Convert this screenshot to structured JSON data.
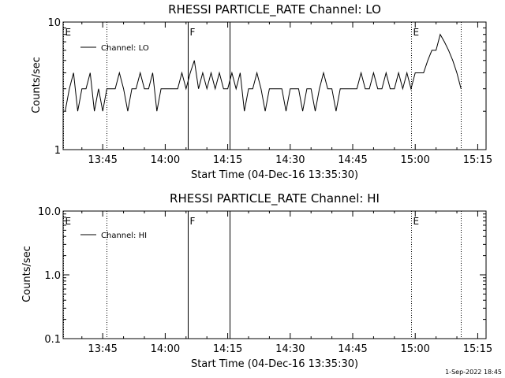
{
  "chart_data": [
    {
      "type": "line",
      "title": "RHESSI PARTICLE_RATE Channel: LO",
      "xlabel": "Start Time (04-Dec-16 13:35:30)",
      "ylabel": "Counts/sec",
      "yscale": "log",
      "ylim": [
        1,
        10
      ],
      "yticks": [
        "1",
        "10"
      ],
      "xlim": [
        "13:35:30",
        "15:17:00"
      ],
      "xticks": [
        "13:45",
        "14:00",
        "14:15",
        "14:30",
        "14:45",
        "15:00",
        "15:15"
      ],
      "legend": "Channel: LO",
      "legend_position": "top-left",
      "grid": false,
      "markers": [
        {
          "time": "13:35:30",
          "label": "E",
          "style": "dotted"
        },
        {
          "time": "13:46:00",
          "label": "",
          "style": "dotted"
        },
        {
          "time": "14:05:30",
          "label": "F",
          "style": "solid"
        },
        {
          "time": "14:15:30",
          "label": "",
          "style": "solid"
        },
        {
          "time": "14:59:00",
          "label": "E",
          "style": "dotted"
        },
        {
          "time": "15:11:00",
          "label": "",
          "style": "dotted"
        }
      ],
      "series": [
        {
          "name": "Channel: LO",
          "points": [
            [
              "13:36:00",
              2
            ],
            [
              "13:37:00",
              3
            ],
            [
              "13:38:00",
              4
            ],
            [
              "13:39:00",
              2
            ],
            [
              "13:40:00",
              3
            ],
            [
              "13:41:00",
              3
            ],
            [
              "13:42:00",
              4
            ],
            [
              "13:43:00",
              2
            ],
            [
              "13:44:00",
              3
            ],
            [
              "13:45:00",
              2
            ],
            [
              "13:46:00",
              3
            ],
            [
              "13:47:00",
              3
            ],
            [
              "13:48:00",
              3
            ],
            [
              "13:49:00",
              4
            ],
            [
              "13:50:00",
              3
            ],
            [
              "13:51:00",
              2
            ],
            [
              "13:52:00",
              3
            ],
            [
              "13:53:00",
              3
            ],
            [
              "13:54:00",
              4
            ],
            [
              "13:55:00",
              3
            ],
            [
              "13:56:00",
              3
            ],
            [
              "13:57:00",
              4
            ],
            [
              "13:58:00",
              2
            ],
            [
              "13:59:00",
              3
            ],
            [
              "14:00:00",
              3
            ],
            [
              "14:01:00",
              3
            ],
            [
              "14:02:00",
              3
            ],
            [
              "14:03:00",
              3
            ],
            [
              "14:04:00",
              4
            ],
            [
              "14:05:00",
              3
            ],
            [
              "14:06:00",
              4
            ],
            [
              "14:07:00",
              5
            ],
            [
              "14:08:00",
              3
            ],
            [
              "14:09:00",
              4
            ],
            [
              "14:10:00",
              3
            ],
            [
              "14:11:00",
              4
            ],
            [
              "14:12:00",
              3
            ],
            [
              "14:13:00",
              4
            ],
            [
              "14:14:00",
              3
            ],
            [
              "14:15:00",
              3
            ],
            [
              "14:16:00",
              4
            ],
            [
              "14:17:00",
              3
            ],
            [
              "14:18:00",
              4
            ],
            [
              "14:19:00",
              2
            ],
            [
              "14:20:00",
              3
            ],
            [
              "14:21:00",
              3
            ],
            [
              "14:22:00",
              4
            ],
            [
              "14:23:00",
              3
            ],
            [
              "14:24:00",
              2
            ],
            [
              "14:25:00",
              3
            ],
            [
              "14:26:00",
              3
            ],
            [
              "14:27:00",
              3
            ],
            [
              "14:28:00",
              3
            ],
            [
              "14:29:00",
              2
            ],
            [
              "14:30:00",
              3
            ],
            [
              "14:31:00",
              3
            ],
            [
              "14:32:00",
              3
            ],
            [
              "14:33:00",
              2
            ],
            [
              "14:34:00",
              3
            ],
            [
              "14:35:00",
              3
            ],
            [
              "14:36:00",
              2
            ],
            [
              "14:37:00",
              3
            ],
            [
              "14:38:00",
              4
            ],
            [
              "14:39:00",
              3
            ],
            [
              "14:40:00",
              3
            ],
            [
              "14:41:00",
              2
            ],
            [
              "14:42:00",
              3
            ],
            [
              "14:43:00",
              3
            ],
            [
              "14:44:00",
              3
            ],
            [
              "14:45:00",
              3
            ],
            [
              "14:46:00",
              3
            ],
            [
              "14:47:00",
              4
            ],
            [
              "14:48:00",
              3
            ],
            [
              "14:49:00",
              3
            ],
            [
              "14:50:00",
              4
            ],
            [
              "14:51:00",
              3
            ],
            [
              "14:52:00",
              3
            ],
            [
              "14:53:00",
              4
            ],
            [
              "14:54:00",
              3
            ],
            [
              "14:55:00",
              3
            ],
            [
              "14:56:00",
              4
            ],
            [
              "14:57:00",
              3
            ],
            [
              "14:58:00",
              4
            ],
            [
              "14:59:00",
              3
            ],
            [
              "15:00:00",
              4
            ],
            [
              "15:01:00",
              4
            ],
            [
              "15:02:00",
              4
            ],
            [
              "15:03:00",
              5
            ],
            [
              "15:04:00",
              6
            ],
            [
              "15:05:00",
              6
            ],
            [
              "15:06:00",
              8
            ],
            [
              "15:07:00",
              7
            ],
            [
              "15:08:00",
              6
            ],
            [
              "15:09:00",
              5
            ],
            [
              "15:10:00",
              4
            ],
            [
              "15:11:00",
              3
            ]
          ]
        }
      ]
    },
    {
      "type": "line",
      "title": "RHESSI PARTICLE_RATE Channel: HI",
      "xlabel": "Start Time (04-Dec-16 13:35:30)",
      "ylabel": "Counts/sec",
      "yscale": "log",
      "ylim": [
        0.1,
        10
      ],
      "yticks": [
        "0.1",
        "1.0",
        "10.0"
      ],
      "xlim": [
        "13:35:30",
        "15:17:00"
      ],
      "xticks": [
        "13:45",
        "14:00",
        "14:15",
        "14:30",
        "14:45",
        "15:00",
        "15:15"
      ],
      "legend": "Channel: HI",
      "legend_position": "top-left",
      "grid": false,
      "markers": [
        {
          "time": "13:35:30",
          "label": "E",
          "style": "dotted"
        },
        {
          "time": "13:46:00",
          "label": "",
          "style": "dotted"
        },
        {
          "time": "14:05:30",
          "label": "F",
          "style": "solid"
        },
        {
          "time": "14:15:30",
          "label": "",
          "style": "solid"
        },
        {
          "time": "14:59:00",
          "label": "E",
          "style": "dotted"
        },
        {
          "time": "15:11:00",
          "label": "",
          "style": "dotted"
        }
      ],
      "series": [
        {
          "name": "Channel: HI",
          "points": []
        }
      ]
    }
  ],
  "footer_timestamp": "1-Sep-2022 18:45"
}
